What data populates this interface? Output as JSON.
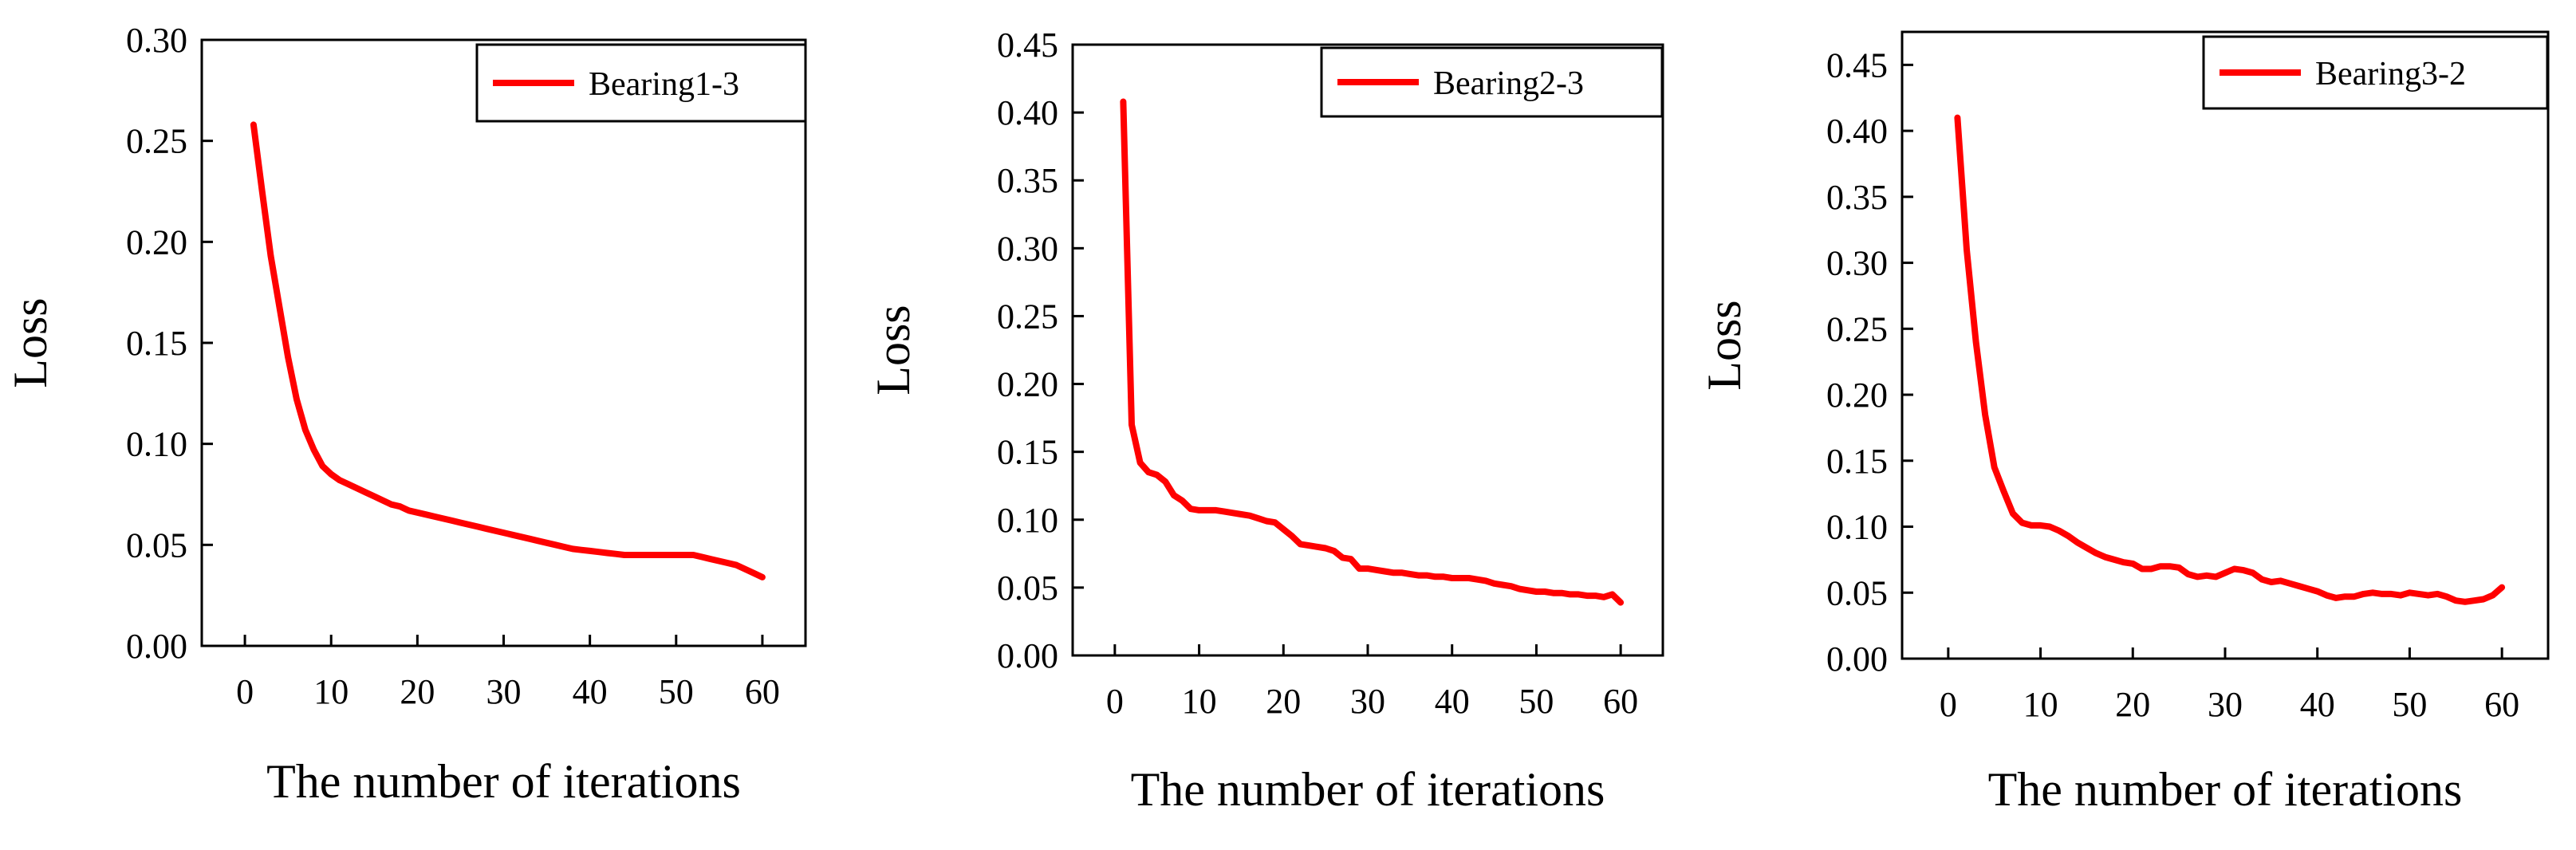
{
  "chart_data": [
    {
      "type": "line",
      "xlabel": "The number of iterations",
      "ylabel": "Loss",
      "xlim": [
        -5,
        65
      ],
      "ylim": [
        0,
        0.3
      ],
      "xticks": [
        0,
        10,
        20,
        30,
        40,
        50,
        60
      ],
      "xtick_labels": [
        "0",
        "10",
        "20",
        "30",
        "40",
        "50",
        "60"
      ],
      "yticks": [
        0,
        0.05,
        0.1,
        0.15,
        0.2,
        0.25,
        0.3
      ],
      "ytick_labels": [
        "0.00",
        "0.05",
        "0.10",
        "0.15",
        "0.20",
        "0.25",
        "0.30"
      ],
      "legend_position": "top-right",
      "grid": false,
      "series": [
        {
          "name": "Bearing1-3",
          "color": "#ff0000",
          "x": [
            1,
            2,
            3,
            4,
            5,
            6,
            7,
            8,
            9,
            10,
            11,
            12,
            13,
            14,
            15,
            16,
            17,
            18,
            19,
            20,
            21,
            22,
            23,
            24,
            25,
            26,
            27,
            28,
            29,
            30,
            31,
            32,
            33,
            34,
            35,
            36,
            37,
            38,
            39,
            40,
            41,
            42,
            43,
            44,
            45,
            46,
            47,
            48,
            49,
            50,
            51,
            52,
            53,
            54,
            55,
            56,
            57,
            58,
            59,
            60
          ],
          "y": [
            0.258,
            0.225,
            0.193,
            0.168,
            0.143,
            0.122,
            0.107,
            0.097,
            0.089,
            0.085,
            0.082,
            0.08,
            0.078,
            0.076,
            0.074,
            0.072,
            0.07,
            0.069,
            0.067,
            0.066,
            0.065,
            0.064,
            0.063,
            0.062,
            0.061,
            0.06,
            0.059,
            0.058,
            0.057,
            0.056,
            0.055,
            0.054,
            0.053,
            0.052,
            0.051,
            0.05,
            0.049,
            0.048,
            0.0475,
            0.047,
            0.0465,
            0.046,
            0.0455,
            0.045,
            0.045,
            0.045,
            0.045,
            0.045,
            0.045,
            0.045,
            0.045,
            0.045,
            0.044,
            0.043,
            0.042,
            0.041,
            0.04,
            0.038,
            0.036,
            0.034
          ]
        }
      ]
    },
    {
      "type": "line",
      "xlabel": "The number of iterations",
      "ylabel": "Loss",
      "xlim": [
        -5,
        65
      ],
      "ylim": [
        0,
        0.45
      ],
      "xticks": [
        0,
        10,
        20,
        30,
        40,
        50,
        60
      ],
      "xtick_labels": [
        "0",
        "10",
        "20",
        "30",
        "40",
        "50",
        "60"
      ],
      "yticks": [
        0,
        0.05,
        0.1,
        0.15,
        0.2,
        0.25,
        0.3,
        0.35,
        0.4,
        0.45
      ],
      "ytick_labels": [
        "0.00",
        "0.05",
        "0.10",
        "0.15",
        "0.20",
        "0.25",
        "0.30",
        "0.35",
        "0.40",
        "0.45"
      ],
      "legend_position": "top-right",
      "grid": false,
      "series": [
        {
          "name": "Bearing2-3",
          "color": "#ff0000",
          "x": [
            1,
            2,
            3,
            4,
            5,
            6,
            7,
            8,
            9,
            10,
            11,
            12,
            13,
            14,
            15,
            16,
            17,
            18,
            19,
            20,
            21,
            22,
            23,
            24,
            25,
            26,
            27,
            28,
            29,
            30,
            31,
            32,
            33,
            34,
            35,
            36,
            37,
            38,
            39,
            40,
            41,
            42,
            43,
            44,
            45,
            46,
            47,
            48,
            49,
            50,
            51,
            52,
            53,
            54,
            55,
            56,
            57,
            58,
            59,
            60
          ],
          "y": [
            0.408,
            0.17,
            0.142,
            0.135,
            0.133,
            0.128,
            0.118,
            0.114,
            0.108,
            0.107,
            0.107,
            0.107,
            0.106,
            0.105,
            0.104,
            0.103,
            0.101,
            0.099,
            0.098,
            0.093,
            0.088,
            0.082,
            0.081,
            0.08,
            0.079,
            0.077,
            0.072,
            0.071,
            0.064,
            0.064,
            0.063,
            0.062,
            0.061,
            0.061,
            0.06,
            0.059,
            0.059,
            0.058,
            0.058,
            0.057,
            0.057,
            0.057,
            0.056,
            0.055,
            0.053,
            0.052,
            0.051,
            0.049,
            0.048,
            0.047,
            0.047,
            0.046,
            0.046,
            0.045,
            0.045,
            0.044,
            0.044,
            0.043,
            0.045,
            0.039
          ]
        }
      ]
    },
    {
      "type": "line",
      "xlabel": "The number of iterations",
      "ylabel": "Loss",
      "xlim": [
        -5,
        65
      ],
      "ylim": [
        0,
        0.475
      ],
      "xticks": [
        0,
        10,
        20,
        30,
        40,
        50,
        60
      ],
      "xtick_labels": [
        "0",
        "10",
        "20",
        "30",
        "40",
        "50",
        "60"
      ],
      "yticks": [
        0,
        0.05,
        0.1,
        0.15,
        0.2,
        0.25,
        0.3,
        0.35,
        0.4,
        0.45
      ],
      "ytick_labels": [
        "0.00",
        "0.05",
        "0.10",
        "0.15",
        "0.20",
        "0.25",
        "0.30",
        "0.35",
        "0.40",
        "0.45"
      ],
      "legend_position": "top-right",
      "grid": false,
      "series": [
        {
          "name": "Bearing3-2",
          "color": "#ff0000",
          "x": [
            1,
            2,
            3,
            4,
            5,
            6,
            7,
            8,
            9,
            10,
            11,
            12,
            13,
            14,
            15,
            16,
            17,
            18,
            19,
            20,
            21,
            22,
            23,
            24,
            25,
            26,
            27,
            28,
            29,
            30,
            31,
            32,
            33,
            34,
            35,
            36,
            37,
            38,
            39,
            40,
            41,
            42,
            43,
            44,
            45,
            46,
            47,
            48,
            49,
            50,
            51,
            52,
            53,
            54,
            55,
            56,
            57,
            58,
            59,
            60
          ],
          "y": [
            0.41,
            0.31,
            0.24,
            0.185,
            0.145,
            0.127,
            0.11,
            0.103,
            0.101,
            0.101,
            0.1,
            0.097,
            0.093,
            0.088,
            0.084,
            0.08,
            0.077,
            0.075,
            0.073,
            0.072,
            0.068,
            0.068,
            0.07,
            0.07,
            0.069,
            0.064,
            0.062,
            0.063,
            0.062,
            0.065,
            0.068,
            0.067,
            0.065,
            0.06,
            0.058,
            0.059,
            0.057,
            0.055,
            0.053,
            0.051,
            0.048,
            0.046,
            0.047,
            0.047,
            0.049,
            0.05,
            0.049,
            0.049,
            0.048,
            0.05,
            0.049,
            0.048,
            0.049,
            0.047,
            0.044,
            0.043,
            0.044,
            0.045,
            0.048,
            0.054
          ]
        }
      ]
    }
  ]
}
